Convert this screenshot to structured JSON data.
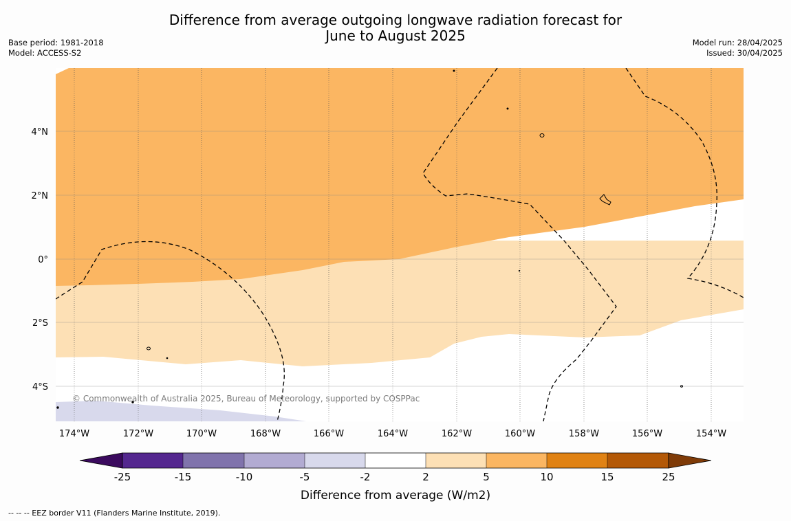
{
  "title_line1": "Difference from average outgoing longwave radiation forecast for",
  "title_line2": "June to August 2025",
  "left_info": {
    "base_period": "Base period: 1981-2018",
    "model": "Model: ACCESS-S2"
  },
  "right_info": {
    "model_run": "Model run: 28/04/2025",
    "issued": "Issued: 30/04/2025"
  },
  "map": {
    "lat_labels": [
      "4°N",
      "2°N",
      "0°",
      "2°S",
      "4°S"
    ],
    "lon_labels": [
      "174°W",
      "172°W",
      "170°W",
      "168°W",
      "166°W",
      "164°W",
      "162°W",
      "160°W",
      "158°W",
      "156°W",
      "154°W"
    ],
    "copyright": "© Commonwealth of Australia 2025, Bureau of Meteorology, supported by COSPPac",
    "fill_colors": {
      "pos_5_10": "#fbb662",
      "pos_2_5": "#fde0b5",
      "neutral": "#ffffff",
      "neg_5_2": "#d8d9ec"
    }
  },
  "colorbar": {
    "tick_labels": [
      "-25",
      "-15",
      "-10",
      "-5",
      "-2",
      "2",
      "5",
      "10",
      "15",
      "25"
    ],
    "colors": [
      "#3b0a5e",
      "#54278f",
      "#8073ac",
      "#b2abd2",
      "#d8d9ec",
      "#ffffff",
      "#fde0b5",
      "#fbb662",
      "#e08214",
      "#b35806",
      "#7f3b08"
    ],
    "label": "Difference from average (W/m2)"
  },
  "footer": "--  --  -- EEZ border V11 (Flanders Marine Institute, 2019)."
}
